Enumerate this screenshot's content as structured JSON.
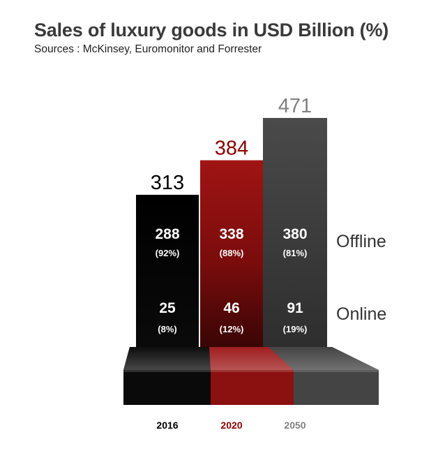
{
  "title": "Sales of luxury goods in USD Billion (%)",
  "subtitle": "Sources : McKinsey, Euromonitor and Forrester",
  "colors": {
    "y2016": "#000000",
    "y2020": "#8b1010",
    "y2050": "#444444",
    "total_2016": "#000000",
    "total_2020": "#8b0000",
    "total_2050": "#808080",
    "row_label": "#333333"
  },
  "chart_data": {
    "type": "bar",
    "stacked": true,
    "categories": [
      "2016",
      "2020",
      "2050"
    ],
    "totals": [
      313,
      384,
      471
    ],
    "series": [
      {
        "name": "Offline",
        "values": [
          288,
          338,
          380
        ],
        "shares": [
          "(92%)",
          "(88%)",
          "(81%)"
        ]
      },
      {
        "name": "Online",
        "values": [
          25,
          46,
          91
        ],
        "shares": [
          "(8%)",
          "(12%)",
          "(19%)"
        ]
      }
    ],
    "row_labels": [
      "Offline",
      "Online"
    ],
    "grid": false,
    "legend": "right"
  }
}
